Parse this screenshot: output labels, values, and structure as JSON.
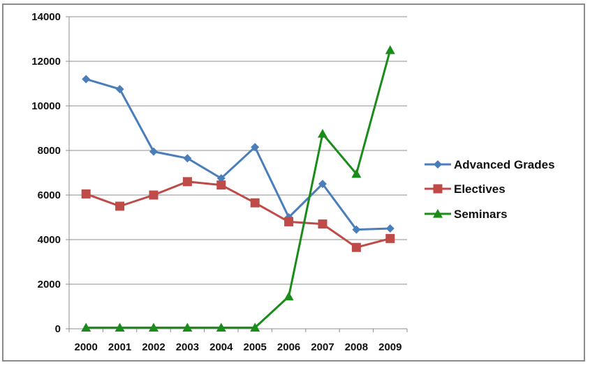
{
  "chart_data": {
    "type": "line",
    "title": "",
    "xlabel": "",
    "ylabel": "",
    "categories": [
      "2000",
      "2001",
      "2002",
      "2003",
      "2004",
      "2005",
      "2006",
      "2007",
      "2008",
      "2009"
    ],
    "ylim": [
      0,
      14000
    ],
    "yticks": [
      0,
      2000,
      4000,
      6000,
      8000,
      10000,
      12000,
      14000
    ],
    "grid": true,
    "legend_position": "right",
    "series": [
      {
        "name": "Advanced Grades",
        "marker": "diamond",
        "color": "#4a7ebb",
        "values": [
          11200,
          10750,
          7950,
          7650,
          6750,
          8150,
          5000,
          6500,
          4450,
          4500
        ]
      },
      {
        "name": "Electives",
        "marker": "square",
        "color": "#be4b48",
        "values": [
          6050,
          5500,
          6000,
          6600,
          6450,
          5650,
          4800,
          4700,
          3650,
          4050
        ]
      },
      {
        "name": "Seminars",
        "marker": "triangle",
        "color": "#1a8c1a",
        "values": [
          50,
          50,
          50,
          50,
          50,
          50,
          1450,
          8750,
          6950,
          12500
        ]
      }
    ]
  }
}
